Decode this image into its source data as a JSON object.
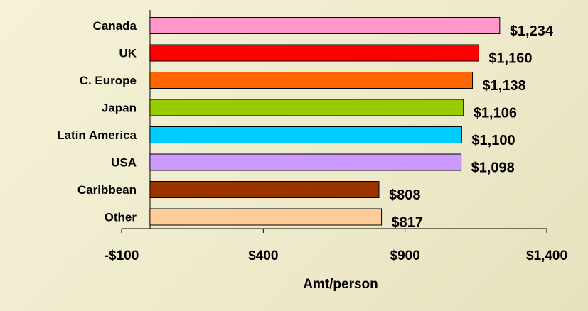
{
  "chart_data": {
    "type": "bar",
    "orientation": "horizontal",
    "title": "",
    "xlabel": "Amt/person",
    "ylabel": "",
    "xlim": [
      -100,
      1400
    ],
    "ticks": [
      -100,
      400,
      900,
      1400
    ],
    "tick_labels": [
      "-$100",
      "$400",
      "$900",
      "$1,400"
    ],
    "grid": false,
    "categories": [
      "Canada",
      "UK",
      "C. Europe",
      "Japan",
      "Latin America",
      "USA",
      "Caribbean",
      "Other"
    ],
    "values": [
      1234,
      1160,
      1138,
      1106,
      1100,
      1098,
      808,
      817
    ],
    "value_labels": [
      "$1,234",
      "$1,160",
      "$1,138",
      "$1,106",
      "$1,100",
      "$1,098",
      "$808",
      "$817"
    ],
    "colors": [
      "#ff99cc",
      "#ff0000",
      "#ff6600",
      "#99cc00",
      "#00ccff",
      "#cc99ff",
      "#993300",
      "#ffcc99"
    ]
  }
}
